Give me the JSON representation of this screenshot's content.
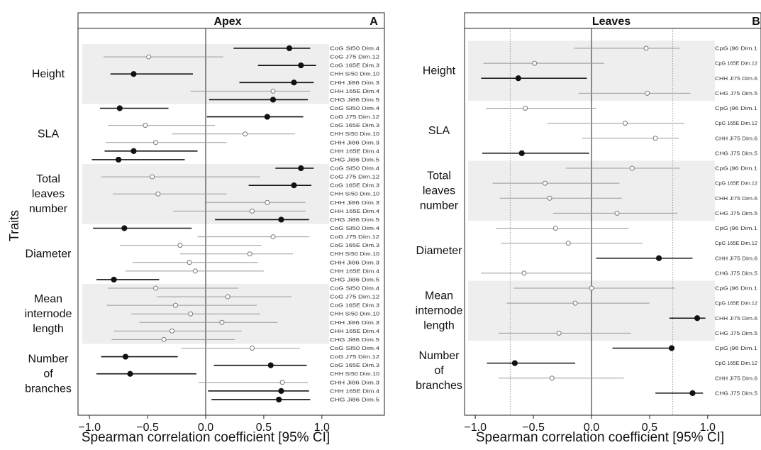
{
  "figure": {
    "y_title": "Traits",
    "x_title": "Spearman correlation coefficient [95% CI]",
    "traits": [
      "Height",
      "SLA",
      "Total\nleaves\nnumber",
      "Diameter",
      "Mean\ninternode\nlength",
      "Number\nof\nbranches"
    ]
  },
  "chart_data": [
    {
      "type": "forest",
      "panel": "Apex",
      "letter": "A",
      "xlabel": "Spearman correlation coefficient [95% CI]",
      "ylabel": "Traits",
      "xlim": [
        -1.05,
        1.05
      ],
      "xticks": [
        "-1.0",
        "-0.5",
        "0.0",
        "0.5",
        "1.0"
      ],
      "reference_line": 0,
      "groups": [
        {
          "trait": "Height",
          "shaded": true,
          "rows": [
            {
              "label": "CoG SI50 Dim.4",
              "r": 0.72,
              "lo": 0.24,
              "hi": 0.9,
              "filled": true
            },
            {
              "label": "CoG J75 Dim.12",
              "r": -0.49,
              "lo": -0.88,
              "hi": 0.15,
              "filled": false
            },
            {
              "label": "CoG 165E Dim.3",
              "r": 0.82,
              "lo": 0.45,
              "hi": 0.95,
              "filled": true
            },
            {
              "label": "CHH SI50 Dim.10",
              "r": -0.62,
              "lo": -0.82,
              "hi": -0.11,
              "filled": true
            },
            {
              "label": "CHH Ji86 Dim.3",
              "r": 0.76,
              "lo": 0.29,
              "hi": 0.93,
              "filled": true
            },
            {
              "label": "CHH 165E Dim.4",
              "r": 0.58,
              "lo": -0.13,
              "hi": 0.9,
              "filled": false
            },
            {
              "label": "CHG Ji86 Dim.5",
              "r": 0.58,
              "lo": 0.03,
              "hi": 0.88,
              "filled": true
            }
          ]
        },
        {
          "trait": "SLA",
          "shaded": false,
          "rows": [
            {
              "label": "CoG SI50 Dim.4",
              "r": -0.74,
              "lo": -0.91,
              "hi": -0.32,
              "filled": true
            },
            {
              "label": "CoG J75 Dim.12",
              "r": 0.53,
              "lo": 0.01,
              "hi": 0.84,
              "filled": true
            },
            {
              "label": "CoG 165E Dim.3",
              "r": -0.52,
              "lo": -0.84,
              "hi": 0.08,
              "filled": false
            },
            {
              "label": "CHH SI50 Dim.10",
              "r": 0.34,
              "lo": -0.29,
              "hi": 0.77,
              "filled": false
            },
            {
              "label": "CHH Ji86 Dim.3",
              "r": -0.43,
              "lo": -0.86,
              "hi": 0.18,
              "filled": false
            },
            {
              "label": "CHH 165E Dim.4",
              "r": -0.62,
              "lo": -0.87,
              "hi": -0.07,
              "filled": true
            },
            {
              "label": "CHG Ji86 Dim.5",
              "r": -0.75,
              "lo": -0.98,
              "hi": -0.18,
              "filled": true
            }
          ]
        },
        {
          "trait": "Total\nleaves\nnumber",
          "shaded": true,
          "rows": [
            {
              "label": "CoG SI50 Dim.4",
              "r": 0.82,
              "lo": 0.6,
              "hi": 0.93,
              "filled": true
            },
            {
              "label": "CoG J75 Dim.12",
              "r": -0.46,
              "lo": -0.9,
              "hi": 0.47,
              "filled": false
            },
            {
              "label": "CoG 165E Dim.3",
              "r": 0.76,
              "lo": 0.37,
              "hi": 0.91,
              "filled": true
            },
            {
              "label": "CHH SI50 Dim.10",
              "r": -0.41,
              "lo": -0.8,
              "hi": 0.18,
              "filled": false
            },
            {
              "label": "CHH Ji86 Dim.3",
              "r": 0.53,
              "lo": -0.01,
              "hi": 0.86,
              "filled": false
            },
            {
              "label": "CHH 165E Dim.4",
              "r": 0.4,
              "lo": -0.28,
              "hi": 0.86,
              "filled": false
            },
            {
              "label": "CHG Ji86 Dim.5",
              "r": 0.65,
              "lo": 0.08,
              "hi": 0.89,
              "filled": true
            }
          ]
        },
        {
          "trait": "Diameter",
          "shaded": false,
          "rows": [
            {
              "label": "CoG SI50 Dim.4",
              "r": -0.7,
              "lo": -0.97,
              "hi": -0.12,
              "filled": true
            },
            {
              "label": "CoG J75 Dim.12",
              "r": 0.58,
              "lo": -0.07,
              "hi": 0.89,
              "filled": false
            },
            {
              "label": "CoG 165E Dim.3",
              "r": -0.22,
              "lo": -0.74,
              "hi": 0.48,
              "filled": false
            },
            {
              "label": "CHH SI50 Dim.10",
              "r": 0.38,
              "lo": -0.22,
              "hi": 0.75,
              "filled": false
            },
            {
              "label": "CHH Ji86 Dim.3",
              "r": -0.14,
              "lo": -0.63,
              "hi": 0.45,
              "filled": false
            },
            {
              "label": "CHH 165E Dim.4",
              "r": -0.09,
              "lo": -0.69,
              "hi": 0.5,
              "filled": false
            },
            {
              "label": "CHG Ji86 Dim.5",
              "r": -0.79,
              "lo": -0.94,
              "hi": -0.4,
              "filled": true
            }
          ]
        },
        {
          "trait": "Mean\ninternode\nlength",
          "shaded": true,
          "rows": [
            {
              "label": "CoG SI50 Dim.4",
              "r": -0.43,
              "lo": -0.84,
              "hi": 0.28,
              "filled": false
            },
            {
              "label": "CoG J75 Dim.12",
              "r": 0.19,
              "lo": -0.42,
              "hi": 0.74,
              "filled": false
            },
            {
              "label": "CoG 165E Dim.3",
              "r": -0.26,
              "lo": -0.85,
              "hi": 0.44,
              "filled": false
            },
            {
              "label": "CHH SI50 Dim.10",
              "r": -0.13,
              "lo": -0.64,
              "hi": 0.47,
              "filled": false
            },
            {
              "label": "CHH Ji86 Dim.3",
              "r": 0.14,
              "lo": -0.57,
              "hi": 0.62,
              "filled": false
            },
            {
              "label": "CHH 165E Dim.4",
              "r": -0.29,
              "lo": -0.79,
              "hi": 0.31,
              "filled": false
            },
            {
              "label": "CHG Ji86 Dim.5",
              "r": -0.36,
              "lo": -0.81,
              "hi": 0.25,
              "filled": false
            }
          ]
        },
        {
          "trait": "Number\nof\nbranches",
          "shaded": false,
          "rows": [
            {
              "label": "CoG SI50 Dim.4",
              "r": 0.4,
              "lo": -0.21,
              "hi": 0.81,
              "filled": false
            },
            {
              "label": "CoG J75 Dim.12",
              "r": -0.69,
              "lo": -0.9,
              "hi": -0.24,
              "filled": true
            },
            {
              "label": "CoG 165E Dim.3",
              "r": 0.56,
              "lo": 0.07,
              "hi": 0.87,
              "filled": true
            },
            {
              "label": "CHH SI50 Dim.10",
              "r": -0.65,
              "lo": -0.94,
              "hi": -0.08,
              "filled": true
            },
            {
              "label": "CHH Ji86 Dim.3",
              "r": 0.66,
              "lo": -0.06,
              "hi": 0.88,
              "filled": false
            },
            {
              "label": "CHH 165E Dim.4",
              "r": 0.65,
              "lo": 0.02,
              "hi": 0.89,
              "filled": true
            },
            {
              "label": "CHG Ji86 Dim.5",
              "r": 0.63,
              "lo": 0.05,
              "hi": 0.9,
              "filled": true
            }
          ]
        }
      ]
    },
    {
      "type": "forest",
      "panel": "Leaves",
      "letter": "B",
      "xlabel": "Spearman correlation coefficient [95% CI]",
      "xlim": [
        -1.05,
        1.05
      ],
      "xticks": [
        "-1.0",
        "-0.5",
        "0.0",
        "0.5",
        "1.0"
      ],
      "reference_line": 0,
      "dotted_lines": [
        -0.7,
        0.7
      ],
      "groups": [
        {
          "trait": "Height",
          "shaded": true,
          "rows": [
            {
              "label": "CpG j96 Dim.1",
              "r": 0.47,
              "lo": -0.15,
              "hi": 0.76,
              "filled": false
            },
            {
              "label": "CpG 165E Dim.12",
              "r": -0.49,
              "lo": -0.93,
              "hi": 0.11,
              "filled": false
            },
            {
              "label": "CHH Ji75 Dim.6",
              "r": -0.63,
              "lo": -0.95,
              "hi": -0.04,
              "filled": true
            },
            {
              "label": "CHG J75 Dim.5",
              "r": 0.48,
              "lo": -0.11,
              "hi": 0.85,
              "filled": false
            }
          ]
        },
        {
          "trait": "SLA",
          "shaded": false,
          "rows": [
            {
              "label": "CpG j96 Dim.1",
              "r": -0.57,
              "lo": -0.91,
              "hi": 0.04,
              "filled": false
            },
            {
              "label": "CpG 165E Dim.12",
              "r": 0.29,
              "lo": -0.38,
              "hi": 0.8,
              "filled": false
            },
            {
              "label": "CHH Ji75 Dim.6",
              "r": 0.55,
              "lo": -0.08,
              "hi": 0.75,
              "filled": false
            },
            {
              "label": "CHG J75 Dim.5",
              "r": -0.6,
              "lo": -0.94,
              "hi": -0.02,
              "filled": true
            }
          ]
        },
        {
          "trait": "Total\nleaves\nnumber",
          "shaded": true,
          "rows": [
            {
              "label": "CpG j96 Dim.1",
              "r": 0.35,
              "lo": -0.22,
              "hi": 0.76,
              "filled": false
            },
            {
              "label": "CpG 165E Dim.12",
              "r": -0.4,
              "lo": -0.85,
              "hi": 0.24,
              "filled": false
            },
            {
              "label": "CHH Ji75 Dim.6",
              "r": -0.36,
              "lo": -0.79,
              "hi": 0.26,
              "filled": false
            },
            {
              "label": "CHG J75 Dim.5",
              "r": 0.22,
              "lo": -0.33,
              "hi": 0.74,
              "filled": false
            }
          ]
        },
        {
          "trait": "Diameter",
          "shaded": false,
          "rows": [
            {
              "label": "CpG j96 Dim.1",
              "r": -0.31,
              "lo": -0.82,
              "hi": 0.32,
              "filled": false
            },
            {
              "label": "CpG 165E Dim.12",
              "r": -0.2,
              "lo": -0.78,
              "hi": 0.44,
              "filled": false
            },
            {
              "label": "CHH Ji75 Dim.6",
              "r": 0.58,
              "lo": 0.04,
              "hi": 0.87,
              "filled": true
            },
            {
              "label": "CHG J75 Dim.5",
              "r": -0.58,
              "lo": -0.95,
              "hi": 0.0,
              "filled": false
            }
          ]
        },
        {
          "trait": "Mean\ninternode\nlength",
          "shaded": true,
          "rows": [
            {
              "label": "CpG j96 Dim.1",
              "r": 0.0,
              "lo": -0.67,
              "hi": 0.72,
              "filled": false
            },
            {
              "label": "CpG 165E Dim.12",
              "r": -0.14,
              "lo": -0.73,
              "hi": 0.5,
              "filled": false
            },
            {
              "label": "CHH Ji75 Dim.6",
              "r": 0.91,
              "lo": 0.67,
              "hi": 0.98,
              "filled": true
            },
            {
              "label": "CHG J75 Dim.5",
              "r": -0.28,
              "lo": -0.8,
              "hi": 0.34,
              "filled": false
            }
          ]
        },
        {
          "trait": "Number\nof\nbranches",
          "shaded": false,
          "rows": [
            {
              "label": "CpG j96 Dim.1",
              "r": 0.69,
              "lo": 0.18,
              "hi": 0.7,
              "filled": true
            },
            {
              "label": "CpG 165E Dim.12",
              "r": -0.66,
              "lo": -0.9,
              "hi": -0.14,
              "filled": true
            },
            {
              "label": "CHH Ji75 Dim.6",
              "r": -0.34,
              "lo": -0.8,
              "hi": 0.28,
              "filled": false
            },
            {
              "label": "CHG J75 Dim.5",
              "r": 0.87,
              "lo": 0.55,
              "hi": 0.96,
              "filled": true
            }
          ]
        }
      ]
    }
  ]
}
